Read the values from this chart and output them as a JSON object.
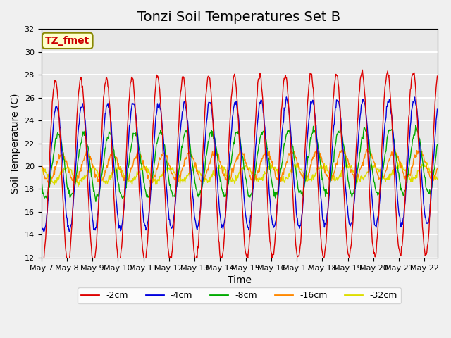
{
  "title": "Tonzi Soil Temperatures Set B",
  "xlabel": "Time",
  "ylabel": "Soil Temperature (C)",
  "annotation": "TZ_fmet",
  "ylim": [
    12,
    32
  ],
  "xlim": [
    0,
    15.5
  ],
  "x_tick_labels": [
    "May 7",
    "May 8",
    "May 9",
    "May 10",
    "May 11",
    "May 12",
    "May 13",
    "May 14",
    "May 15",
    "May 16",
    "May 17",
    "May 18",
    "May 19",
    "May 20",
    "May 21",
    "May 22"
  ],
  "legend_labels": [
    "-2cm",
    "-4cm",
    "-8cm",
    "-16cm",
    "-32cm"
  ],
  "legend_colors": [
    "#dd0000",
    "#0000dd",
    "#00aa00",
    "#ff8800",
    "#dddd00"
  ],
  "line_colors": [
    "#dd0000",
    "#0000dd",
    "#00aa00",
    "#ff8800",
    "#dddd00"
  ],
  "bg_color": "#e8e8e8",
  "grid_color": "#ffffff",
  "title_fontsize": 14,
  "label_fontsize": 10,
  "tick_fontsize": 8
}
